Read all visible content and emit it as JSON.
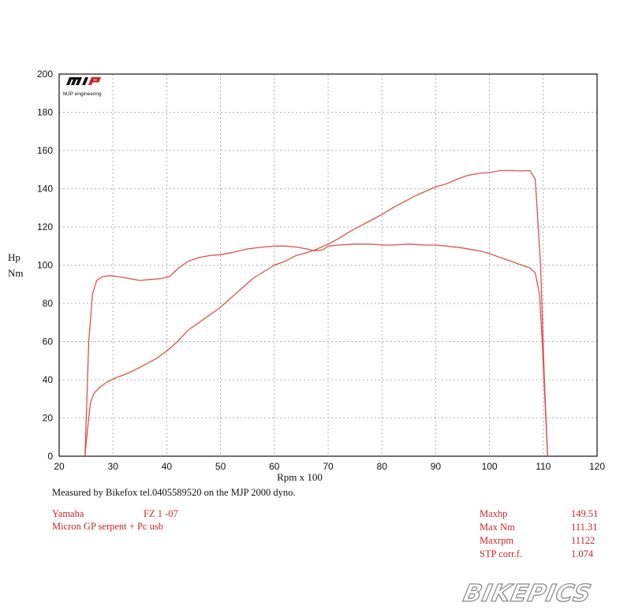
{
  "logo": {
    "mark": "MJP",
    "text": "MJP engineering"
  },
  "chart_data": {
    "type": "line",
    "xlabel": "Rpm x 100",
    "ylabel_lines": [
      "Hp",
      "Nm"
    ],
    "xlim": [
      20,
      120
    ],
    "ylim": [
      0,
      200
    ],
    "xticks": [
      20,
      30,
      40,
      50,
      60,
      70,
      80,
      90,
      100,
      110,
      120
    ],
    "yticks": [
      0,
      20,
      40,
      60,
      80,
      100,
      120,
      140,
      160,
      180,
      200
    ],
    "grid": true,
    "line_color": "#d9534f",
    "series": [
      {
        "x": [
          24.8,
          25.2,
          25.8,
          26.5,
          27.5,
          29,
          30.5,
          32,
          34,
          36,
          38,
          40,
          42,
          44,
          46,
          48,
          50,
          52,
          54,
          56,
          58,
          60,
          62,
          64,
          66,
          68,
          70,
          72,
          74,
          76,
          78,
          80,
          82,
          84,
          86,
          88,
          90,
          92,
          94,
          96,
          98,
          100,
          102,
          104,
          106,
          107.5,
          108.5,
          109.5,
          110.2,
          110.8
        ],
        "y": [
          0,
          12,
          28,
          33,
          36,
          39,
          41,
          42.5,
          45,
          48,
          51,
          55,
          60,
          66,
          70,
          74,
          78,
          83,
          88,
          93,
          96.5,
          100,
          102,
          105,
          106.5,
          108.5,
          111,
          114,
          117.5,
          120.5,
          123.5,
          126.5,
          130,
          133,
          136,
          138.5,
          141,
          142.5,
          145,
          147,
          148,
          148.5,
          149.5,
          149.5,
          149.3,
          149.5,
          145,
          100,
          40,
          0
        ]
      },
      {
        "x": [
          24.8,
          25.1,
          25.5,
          26.2,
          27,
          28,
          29.5,
          31,
          33,
          35,
          37,
          39,
          40.5,
          42,
          44,
          46,
          48,
          50,
          52,
          55,
          58,
          60,
          62,
          64,
          66,
          67.5,
          69,
          70,
          72,
          75,
          78,
          80,
          82,
          85,
          88,
          90,
          92,
          95,
          98,
          100,
          102,
          104,
          106,
          107.5,
          108.5,
          109.3,
          109.8,
          110.3,
          110.8
        ],
        "y": [
          0,
          25,
          60,
          85,
          92,
          94,
          94.5,
          94,
          93,
          92,
          92.5,
          93,
          94,
          98,
          102,
          104,
          105,
          105.5,
          106.5,
          108.5,
          109.5,
          110,
          110,
          109.5,
          108.5,
          107.5,
          108,
          110,
          110.5,
          111,
          111,
          110.5,
          110.5,
          111,
          110.5,
          110.5,
          110,
          109,
          107.5,
          106,
          104,
          102,
          100,
          98.5,
          96,
          85,
          60,
          30,
          0
        ]
      }
    ]
  },
  "notes": {
    "measured": "Measured by Bikefox tel.0405589520 on the MJP 2000 dyno.",
    "make": "Yamaha",
    "model": "FZ 1 -07",
    "mods": "Micron GP serpent  + Pc usb"
  },
  "stats": [
    {
      "label": "Maxhp",
      "value": "149.51"
    },
    {
      "label": "Max Nm",
      "value": "111.31"
    },
    {
      "label": "Maxrpm",
      "value": "11122"
    },
    {
      "label": "STP corr.f.",
      "value": "1.074"
    }
  ],
  "watermark": "BIKEPICS"
}
